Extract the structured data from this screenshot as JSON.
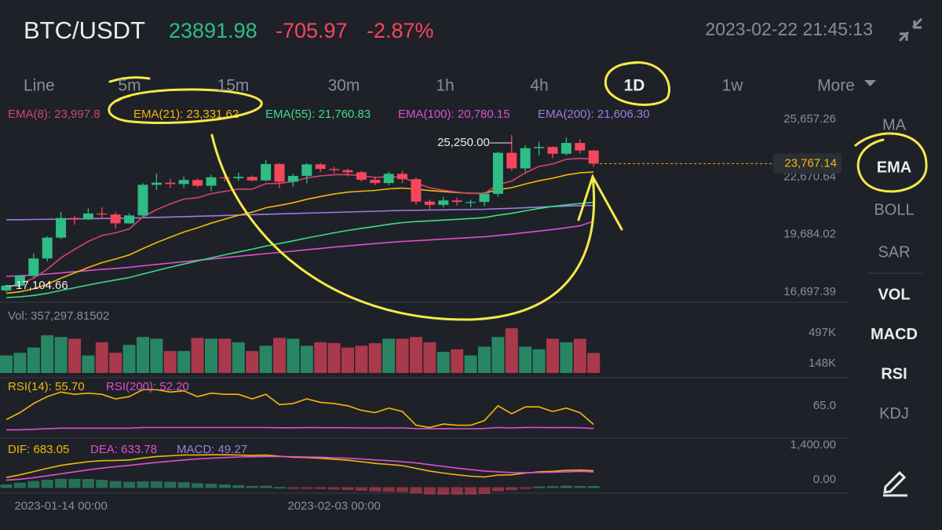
{
  "header": {
    "pair": "BTC/USDT",
    "price": "23891.98",
    "change": "-705.97",
    "change_pct": "-2.87%",
    "datetime": "2023-02-22 21:45:13"
  },
  "timeframes": [
    "Line",
    "5m",
    "15m",
    "30m",
    "1h",
    "4h",
    "1D",
    "1w",
    "More"
  ],
  "timeframe_selected": 6,
  "side_menu": {
    "main": [
      "MA",
      "EMA",
      "BOLL",
      "SAR"
    ],
    "main_selected": 1,
    "sub": [
      "VOL",
      "MACD",
      "RSI",
      "KDJ"
    ],
    "sub_active": [
      0,
      1,
      2
    ]
  },
  "chart_data": {
    "type": "candlestick",
    "dates": [
      null,
      null,
      null,
      null,
      "2023-01-14 00:00",
      null,
      null,
      null,
      null,
      null,
      null,
      null,
      null,
      null,
      null,
      null,
      null,
      null,
      null,
      null,
      null,
      null,
      null,
      null,
      "2023-02-03 00:00",
      null,
      null,
      null,
      null,
      null,
      null,
      null,
      null,
      null,
      null,
      null,
      null,
      null,
      null,
      null,
      null,
      null,
      null,
      null
    ],
    "open": [
      17190,
      17440,
      17940,
      18850,
      19930,
      20950,
      20870,
      21180,
      21130,
      20670,
      21080,
      22670,
      22780,
      22710,
      22920,
      22620,
      23060,
      23010,
      23080,
      22900,
      23750,
      22830,
      23130,
      23730,
      23490,
      23430,
      23320,
      22930,
      22760,
      23240,
      22960,
      21800,
      21630,
      21860,
      21780,
      21780,
      22200,
      24330,
      23520,
      24570,
      24630,
      24280,
      24840,
      24450
    ],
    "high": [
      17480,
      18000,
      19100,
      20000,
      21260,
      21050,
      21450,
      21500,
      21250,
      21200,
      22750,
      23250,
      22980,
      23100,
      23000,
      23190,
      23240,
      23300,
      23150,
      23950,
      23800,
      23250,
      23800,
      23800,
      23600,
      23500,
      23400,
      23100,
      23350,
      23400,
      23050,
      21900,
      22050,
      22000,
      21900,
      22300,
      24380,
      25250,
      24720,
      24900,
      24650,
      25120,
      25020,
      24480
    ],
    "low": [
      17104.66,
      17350,
      17850,
      18700,
      19850,
      20600,
      20850,
      20900,
      20400,
      20650,
      21000,
      22400,
      22500,
      22500,
      22550,
      22350,
      22850,
      22880,
      22850,
      22850,
      22500,
      22580,
      22750,
      23320,
      23250,
      23100,
      22850,
      22650,
      22650,
      22750,
      21650,
      21400,
      21500,
      21600,
      21500,
      21550,
      22050,
      23400,
      23350,
      24200,
      24050,
      24200,
      24300,
      23600
    ],
    "close": [
      17440,
      17940,
      18850,
      19930,
      20950,
      20870,
      21180,
      21130,
      20670,
      21080,
      22670,
      22780,
      22710,
      22920,
      22620,
      23060,
      23010,
      23080,
      22900,
      23750,
      22830,
      23130,
      23730,
      23490,
      23430,
      23320,
      22930,
      22760,
      23240,
      22960,
      21800,
      21630,
      21860,
      21780,
      21780,
      22200,
      24330,
      23520,
      24570,
      24630,
      24280,
      24840,
      24450,
      23767.14
    ],
    "up_color": "#2ebd85",
    "down_color": "#f6465d",
    "high_label": "25,250.00",
    "low_label": "17,104.66",
    "last_label": "23,767.14",
    "yticks": [
      {
        "value": 25657.26,
        "label": "25,657.26"
      },
      {
        "value": 22670.64,
        "label": "22,670.64"
      },
      {
        "value": 19684.02,
        "label": "19,684.02"
      },
      {
        "value": 16697.39,
        "label": "16,697.39"
      }
    ],
    "series": [
      {
        "name": "EMA(8): 23,997.8",
        "color": "#d0466d",
        "values": [
          17350,
          17530,
          17820,
          18290,
          18880,
          19320,
          19730,
          20040,
          20180,
          20380,
          21000,
          21380,
          21680,
          21930,
          22000,
          22210,
          22330,
          22450,
          22440,
          22730,
          22750,
          22830,
          23030,
          23130,
          23190,
          23200,
          23140,
          23050,
          23090,
          23060,
          22770,
          22510,
          22390,
          22290,
          22220,
          22220,
          22680,
          22860,
          23290,
          23620,
          23750,
          23990,
          24040,
          23997.8
        ]
      },
      {
        "name": "EMA(21): 23,331.62",
        "color": "#f0b90b",
        "values": [
          17040,
          17120,
          17270,
          17510,
          17820,
          18100,
          18380,
          18630,
          18820,
          19030,
          19360,
          19670,
          19950,
          20220,
          20440,
          20680,
          20890,
          21090,
          21250,
          21480,
          21600,
          21740,
          21920,
          22060,
          22190,
          22290,
          22340,
          22380,
          22460,
          22500,
          22440,
          22370,
          22320,
          22270,
          22230,
          22230,
          22420,
          22520,
          22710,
          22880,
          23010,
          23180,
          23290,
          23331.62
        ]
      },
      {
        "name": "EMA(55): 21,760.83",
        "color": "#3ddc84",
        "values": [
          16820,
          16860,
          16930,
          17040,
          17190,
          17330,
          17470,
          17610,
          17730,
          17860,
          18040,
          18220,
          18390,
          18560,
          18720,
          18880,
          19040,
          19190,
          19330,
          19490,
          19620,
          19760,
          19910,
          20040,
          20180,
          20300,
          20410,
          20510,
          20620,
          20710,
          20760,
          20800,
          20840,
          20880,
          20920,
          20970,
          21090,
          21190,
          21320,
          21440,
          21550,
          21630,
          21700,
          21760.83
        ]
      },
      {
        "name": "EMA(100): 20,780.15",
        "color": "#e04fd0",
        "values": [
          17920,
          17950,
          17990,
          18040,
          18100,
          18160,
          18220,
          18280,
          18330,
          18390,
          18470,
          18540,
          18610,
          18680,
          18750,
          18820,
          18890,
          18960,
          19030,
          19100,
          19160,
          19230,
          19300,
          19370,
          19440,
          19500,
          19560,
          19620,
          19680,
          19730,
          19770,
          19810,
          19850,
          19890,
          19930,
          19970,
          20040,
          20110,
          20190,
          20270,
          20350,
          20440,
          20540,
          20780.15
        ]
      },
      {
        "name": "EMA(200): 21,606.30",
        "color": "#9c7ce0",
        "values": [
          20860,
          20860,
          20870,
          20880,
          20890,
          20900,
          20910,
          20920,
          20930,
          20940,
          20960,
          20980,
          21000,
          21020,
          21040,
          21060,
          21080,
          21100,
          21120,
          21140,
          21160,
          21180,
          21200,
          21220,
          21240,
          21260,
          21280,
          21300,
          21320,
          21340,
          21350,
          21360,
          21370,
          21380,
          21390,
          21400,
          21430,
          21450,
          21480,
          21510,
          21540,
          21570,
          21590,
          21606.3
        ]
      }
    ]
  },
  "volume": {
    "label": "Vol: 357,297.81502",
    "values": [
      330000,
      360000,
      420000,
      560000,
      540000,
      520000,
      330000,
      480000,
      360000,
      450000,
      540000,
      520000,
      380000,
      380000,
      530000,
      520000,
      520000,
      480000,
      380000,
      440000,
      530000,
      520000,
      440000,
      480000,
      470000,
      420000,
      440000,
      470000,
      520000,
      520000,
      540000,
      480000,
      370000,
      400000,
      330000,
      430000,
      540000,
      640000,
      430000,
      400000,
      520000,
      480000,
      520000,
      357297.81502
    ],
    "yticks": [
      {
        "value": 497000,
        "label": "497K"
      },
      {
        "value": 148000,
        "label": "148K"
      }
    ]
  },
  "rsi": {
    "series": [
      {
        "name": "RSI(14): 55.70",
        "color": "#f0b90b",
        "values": [
          60,
          66,
          74,
          80,
          84,
          82,
          83,
          82,
          78,
          80,
          86,
          86,
          84,
          85,
          80,
          83,
          82,
          82,
          78,
          82,
          73,
          74,
          78,
          75,
          74,
          72,
          68,
          66,
          70,
          67,
          55,
          53,
          56,
          55,
          55,
          59,
          72,
          65,
          71,
          71,
          67,
          70,
          66,
          55.7
        ]
      },
      {
        "name": "RSI(200): 52.20",
        "color": "#e04fd0",
        "values": [
          51,
          51,
          51.5,
          52,
          52.5,
          52.5,
          52.5,
          52.5,
          52.5,
          52.5,
          53,
          53,
          53,
          53,
          53,
          53,
          53,
          53,
          53,
          53,
          52.8,
          52.8,
          53,
          52.9,
          52.9,
          52.8,
          52.7,
          52.6,
          52.7,
          52.6,
          52.1,
          52,
          52.1,
          52,
          52,
          52.2,
          53,
          52.7,
          53.1,
          53.1,
          52.9,
          53.1,
          52.8,
          52.2
        ]
      }
    ],
    "yticks": [
      {
        "value": 65,
        "label": "65.0"
      }
    ]
  },
  "macd": {
    "series": [
      {
        "name": "DIF: 683.05",
        "color": "#f0b90b",
        "values": [
          410,
          520,
          650,
          780,
          900,
          980,
          1050,
          1090,
          1100,
          1120,
          1200,
          1260,
          1290,
          1320,
          1320,
          1330,
          1330,
          1320,
          1300,
          1320,
          1270,
          1230,
          1220,
          1190,
          1150,
          1110,
          1050,
          980,
          940,
          890,
          780,
          670,
          590,
          520,
          460,
          430,
          510,
          520,
          590,
          640,
          660,
          700,
          710,
          683.05
        ]
      },
      {
        "name": "DEA: 633.78",
        "color": "#e04fd0",
        "values": [
          300,
          340,
          400,
          480,
          560,
          640,
          720,
          790,
          850,
          900,
          960,
          1020,
          1070,
          1120,
          1160,
          1190,
          1220,
          1240,
          1250,
          1260,
          1260,
          1250,
          1240,
          1230,
          1210,
          1190,
          1160,
          1120,
          1090,
          1050,
          1000,
          930,
          860,
          790,
          730,
          670,
          640,
          610,
          600,
          610,
          620,
          640,
          660,
          633.78
        ]
      }
    ],
    "histogram": {
      "name": "MACD: 49.27",
      "color": "#9c7ce0",
      "values": [
        110,
        180,
        250,
        300,
        340,
        340,
        330,
        300,
        250,
        220,
        240,
        240,
        220,
        200,
        160,
        140,
        110,
        80,
        50,
        60,
        10,
        -20,
        -20,
        -40,
        -60,
        -80,
        -110,
        -140,
        -150,
        -160,
        -220,
        -260,
        -270,
        -270,
        -270,
        -240,
        -130,
        -90,
        -10,
        30,
        40,
        60,
        50,
        49.27
      ]
    },
    "yticks": [
      {
        "value": 1400,
        "label": "1,400.00"
      },
      {
        "value": 0,
        "label": "0.00"
      }
    ]
  }
}
